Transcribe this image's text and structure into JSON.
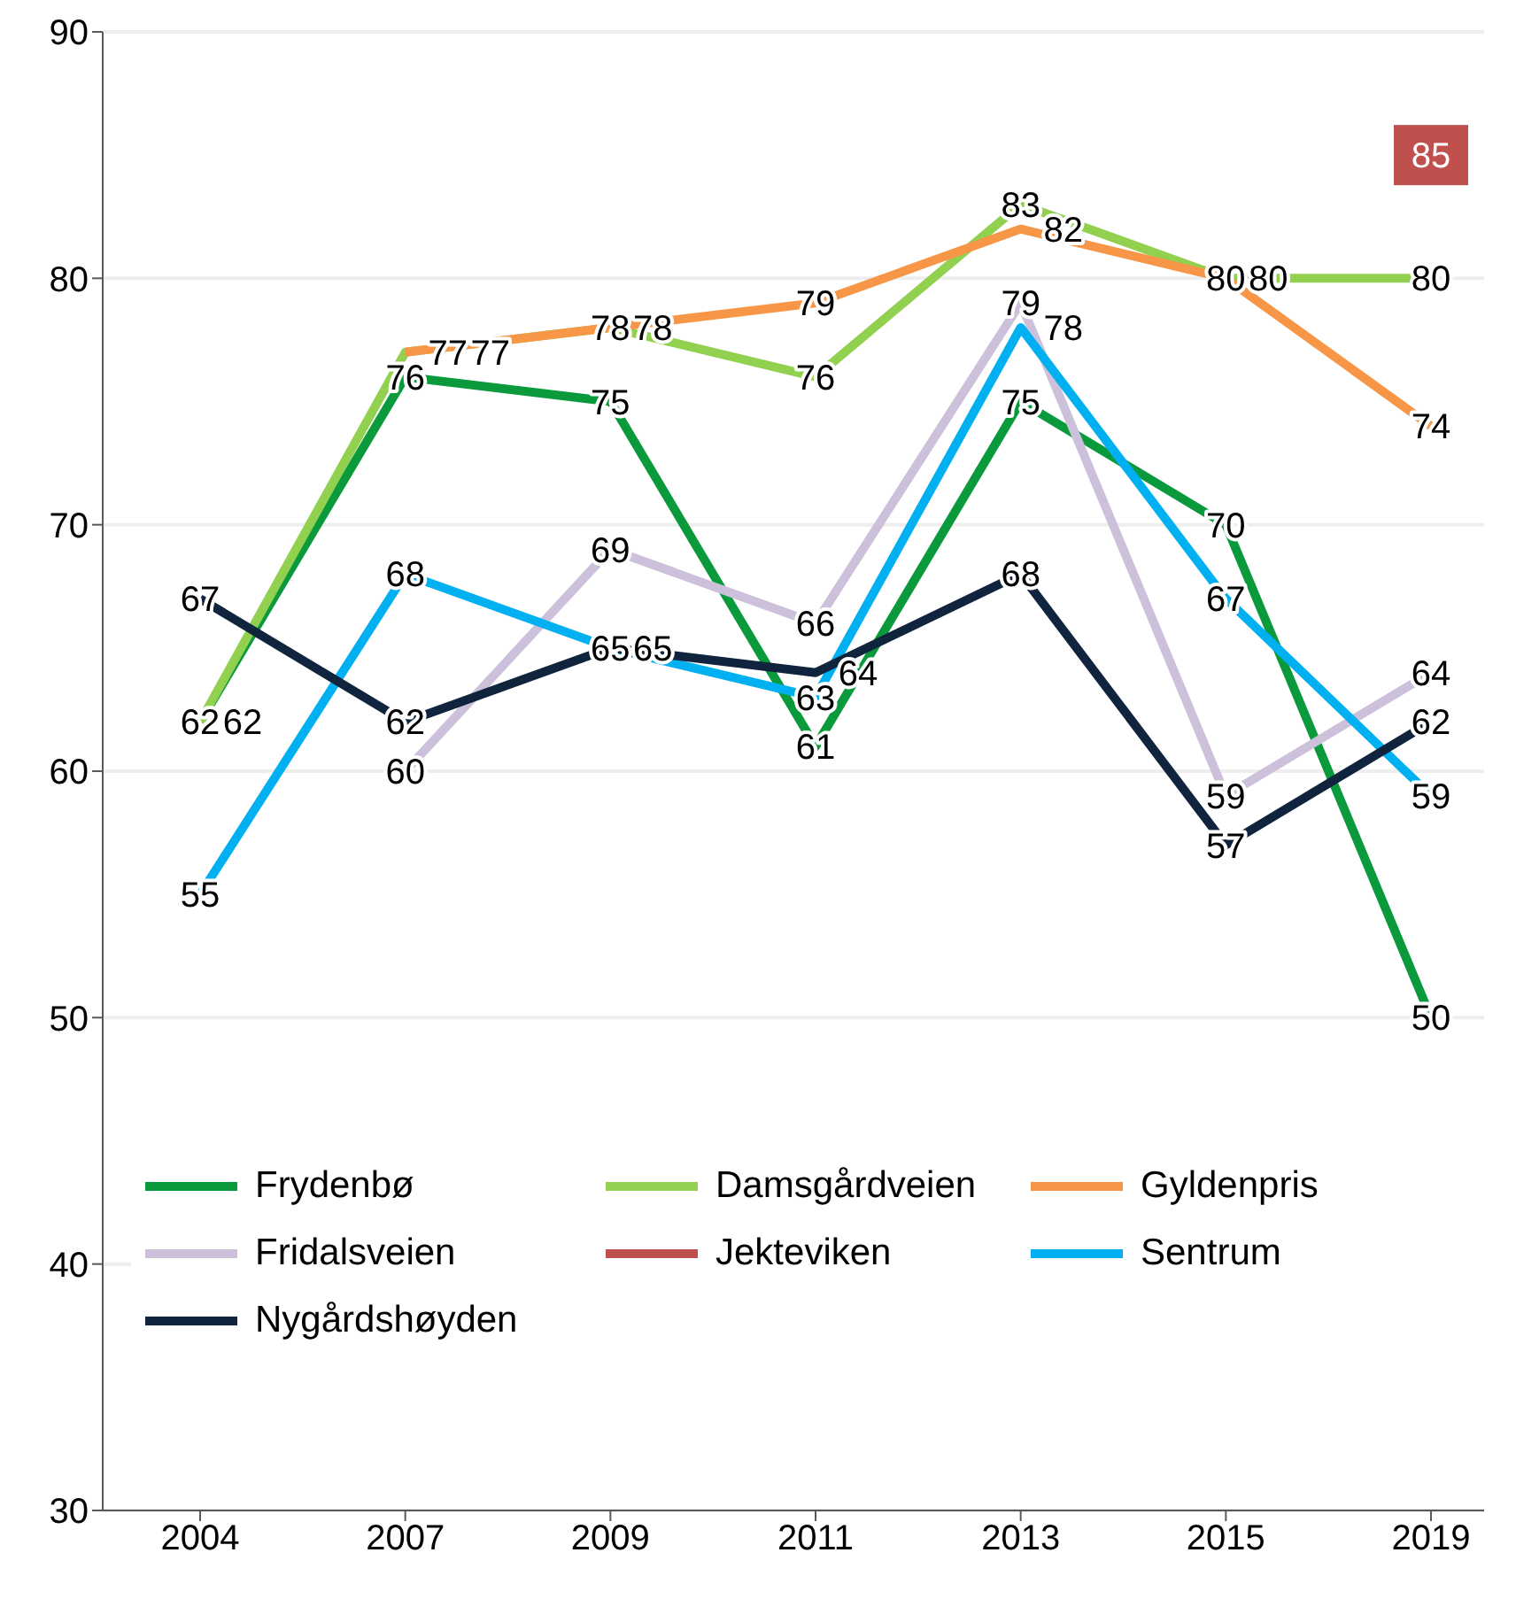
{
  "chart_data": {
    "type": "line",
    "categories": [
      "2004",
      "2007",
      "2009",
      "2011",
      "2013",
      "2015",
      "2019"
    ],
    "series": [
      {
        "name": "Frydenbø",
        "color": "#0a9a3c",
        "values": [
          62,
          76,
          75,
          61,
          75,
          70,
          50
        ]
      },
      {
        "name": "Damsgårdveien",
        "color": "#92d050",
        "values": [
          62,
          77,
          78,
          76,
          83,
          80,
          80
        ]
      },
      {
        "name": "Gyldenpris",
        "color": "#f79646",
        "values": [
          null,
          77,
          78,
          79,
          82,
          80,
          74
        ]
      },
      {
        "name": "Fridalsveien",
        "color": "#ccc0da",
        "values": [
          null,
          60,
          69,
          66,
          79,
          59,
          64
        ]
      },
      {
        "name": "Jekteviken",
        "color": "#c0504d",
        "values": [
          null,
          null,
          null,
          null,
          null,
          null,
          85
        ],
        "marker": "square"
      },
      {
        "name": "Sentrum",
        "color": "#00b0f0",
        "values": [
          55,
          68,
          65,
          63,
          78,
          67,
          59
        ]
      },
      {
        "name": "Nygårdshøyden",
        "color": "#10243e",
        "values": [
          67,
          62,
          65,
          64,
          68,
          57,
          62
        ]
      }
    ],
    "ylim": [
      30,
      90
    ],
    "yticks": [
      30,
      40,
      50,
      60,
      70,
      80,
      90
    ],
    "grid": "y",
    "legend": "bottom",
    "data_labels": true,
    "marker": "none",
    "line_style": "solid"
  }
}
